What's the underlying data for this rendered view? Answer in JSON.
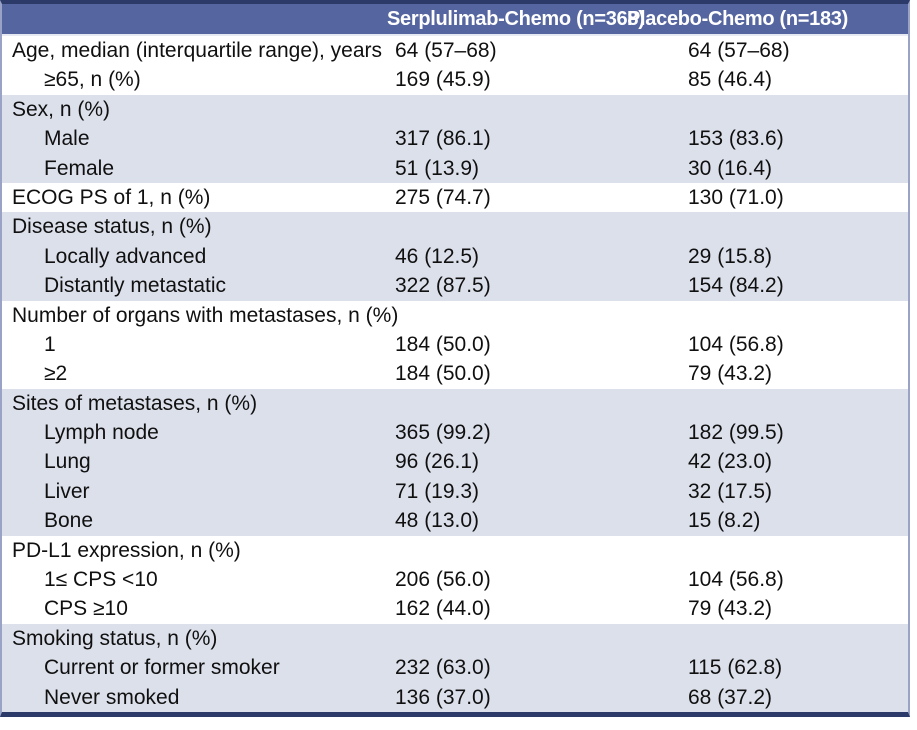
{
  "header": {
    "col1": "",
    "col2": "Serplulimab-Chemo (n=368)",
    "col3": "Placebo-Chemo (n=183)"
  },
  "rows": [
    {
      "label": "Age, median (interquartile range), years",
      "c1": "64 (57–68)",
      "c2": "64 (57–68)"
    },
    {
      "label": "≥65, n (%)",
      "c1": "169 (45.9)",
      "c2": "85 (46.4)"
    },
    {
      "label": "Sex, n (%)",
      "c1": "",
      "c2": ""
    },
    {
      "label": "Male",
      "c1": "317 (86.1)",
      "c2": "153 (83.6)"
    },
    {
      "label": "Female",
      "c1": "51 (13.9)",
      "c2": "30 (16.4)"
    },
    {
      "label": "ECOG PS of 1, n (%)",
      "c1": "275 (74.7)",
      "c2": "130 (71.0)"
    },
    {
      "label": "Disease status, n (%)",
      "c1": "",
      "c2": ""
    },
    {
      "label": "Locally advanced",
      "c1": "46 (12.5)",
      "c2": "29 (15.8)"
    },
    {
      "label": "Distantly metastatic",
      "c1": "322 (87.5)",
      "c2": "154 (84.2)"
    },
    {
      "label": "Number of organs with metastases, n (%)",
      "c1": "",
      "c2": ""
    },
    {
      "label": "1",
      "c1": "184 (50.0)",
      "c2": "104 (56.8)"
    },
    {
      "label": "≥2",
      "c1": "184 (50.0)",
      "c2": "79 (43.2)"
    },
    {
      "label": "Sites of metastases, n (%)",
      "c1": "",
      "c2": ""
    },
    {
      "label": "Lymph node",
      "c1": "365 (99.2)",
      "c2": "182 (99.5)"
    },
    {
      "label": "Lung",
      "c1": "96 (26.1)",
      "c2": "42 (23.0)"
    },
    {
      "label": "Liver",
      "c1": "71 (19.3)",
      "c2": "32 (17.5)"
    },
    {
      "label": "Bone",
      "c1": "48 (13.0)",
      "c2": "15 (8.2)"
    },
    {
      "label": "PD-L1 expression, n (%)",
      "c1": "",
      "c2": ""
    },
    {
      "label": "1≤ CPS <10",
      "c1": "206 (56.0)",
      "c2": "104 (56.8)"
    },
    {
      "label": "CPS ≥10",
      "c1": "162 (44.0)",
      "c2": "79 (43.2)"
    },
    {
      "label": "Smoking status, n (%)",
      "c1": "",
      "c2": ""
    },
    {
      "label": "Current or former smoker",
      "c1": "232 (63.0)",
      "c2": "115 (62.8)"
    },
    {
      "label": "Never smoked",
      "c1": "136 (37.0)",
      "c2": "68 (37.2)"
    }
  ],
  "colors": {
    "header_background": "#5565a0",
    "shaded_row_background": "#dce0eb",
    "outer_border": "#2c3a6a",
    "side_border": "#9aa3c6",
    "header_text": "#ffffff",
    "body_text": "#101010"
  }
}
